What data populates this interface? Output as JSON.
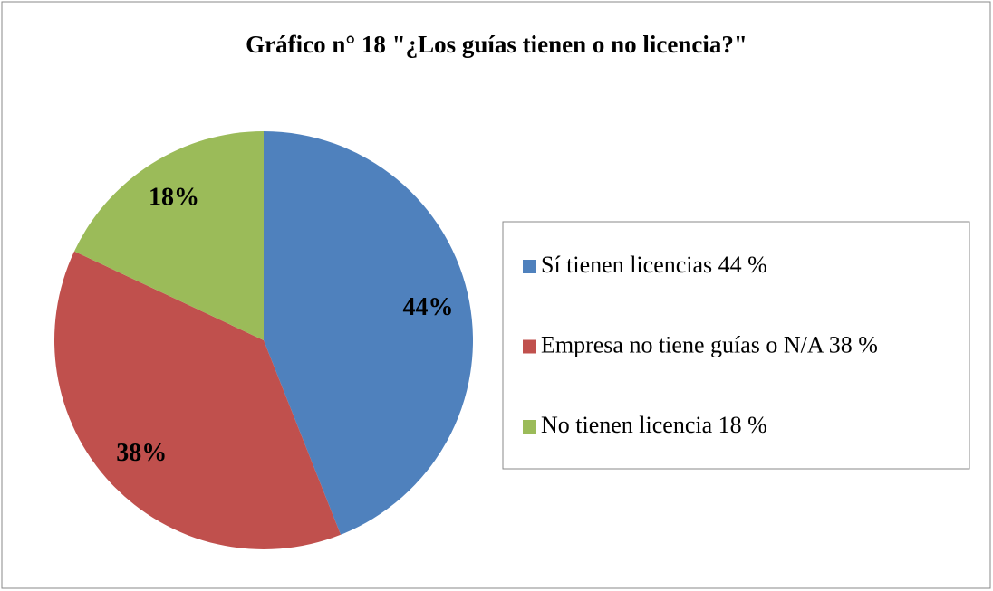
{
  "chart_data": {
    "type": "pie",
    "title": "Gráfico n° 18 \"¿Los guías tienen o no licencia?\"",
    "categories": [
      "Sí tienen licencias 44 %",
      "Empresa no tiene guías o N/A 38 %",
      "No tienen licencia 18 %"
    ],
    "values": [
      44,
      38,
      18
    ],
    "value_labels": [
      "44%",
      "38%",
      "18%"
    ],
    "colors": [
      "#4f81bd",
      "#c0504d",
      "#9bbb59"
    ],
    "legend": "right"
  }
}
